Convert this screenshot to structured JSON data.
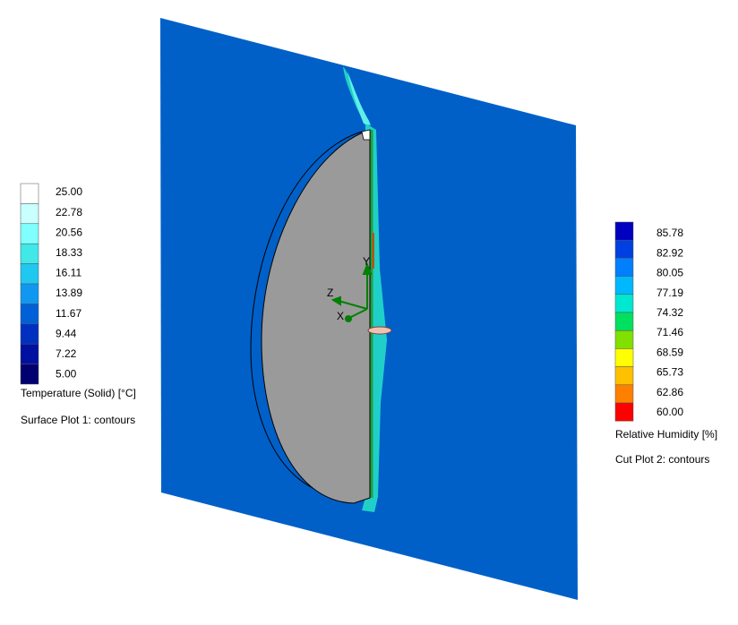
{
  "temperature_legend": {
    "labels": [
      "25.00",
      "22.78",
      "20.56",
      "18.33",
      "16.11",
      "13.89",
      "11.67",
      "9.44",
      "7.22",
      "5.00"
    ],
    "title": "Temperature (Solid) [°C]",
    "plot_name": "Surface Plot 1: contours"
  },
  "humidity_legend": {
    "labels": [
      "85.78",
      "82.92",
      "80.05",
      "77.19",
      "74.32",
      "71.46",
      "68.59",
      "65.73",
      "62.86",
      "60.00"
    ],
    "title": "Relative Humidity [%]",
    "plot_name": "Cut Plot 2: contours"
  },
  "triad": {
    "x": "X",
    "y": "Y",
    "z": "Z"
  }
}
